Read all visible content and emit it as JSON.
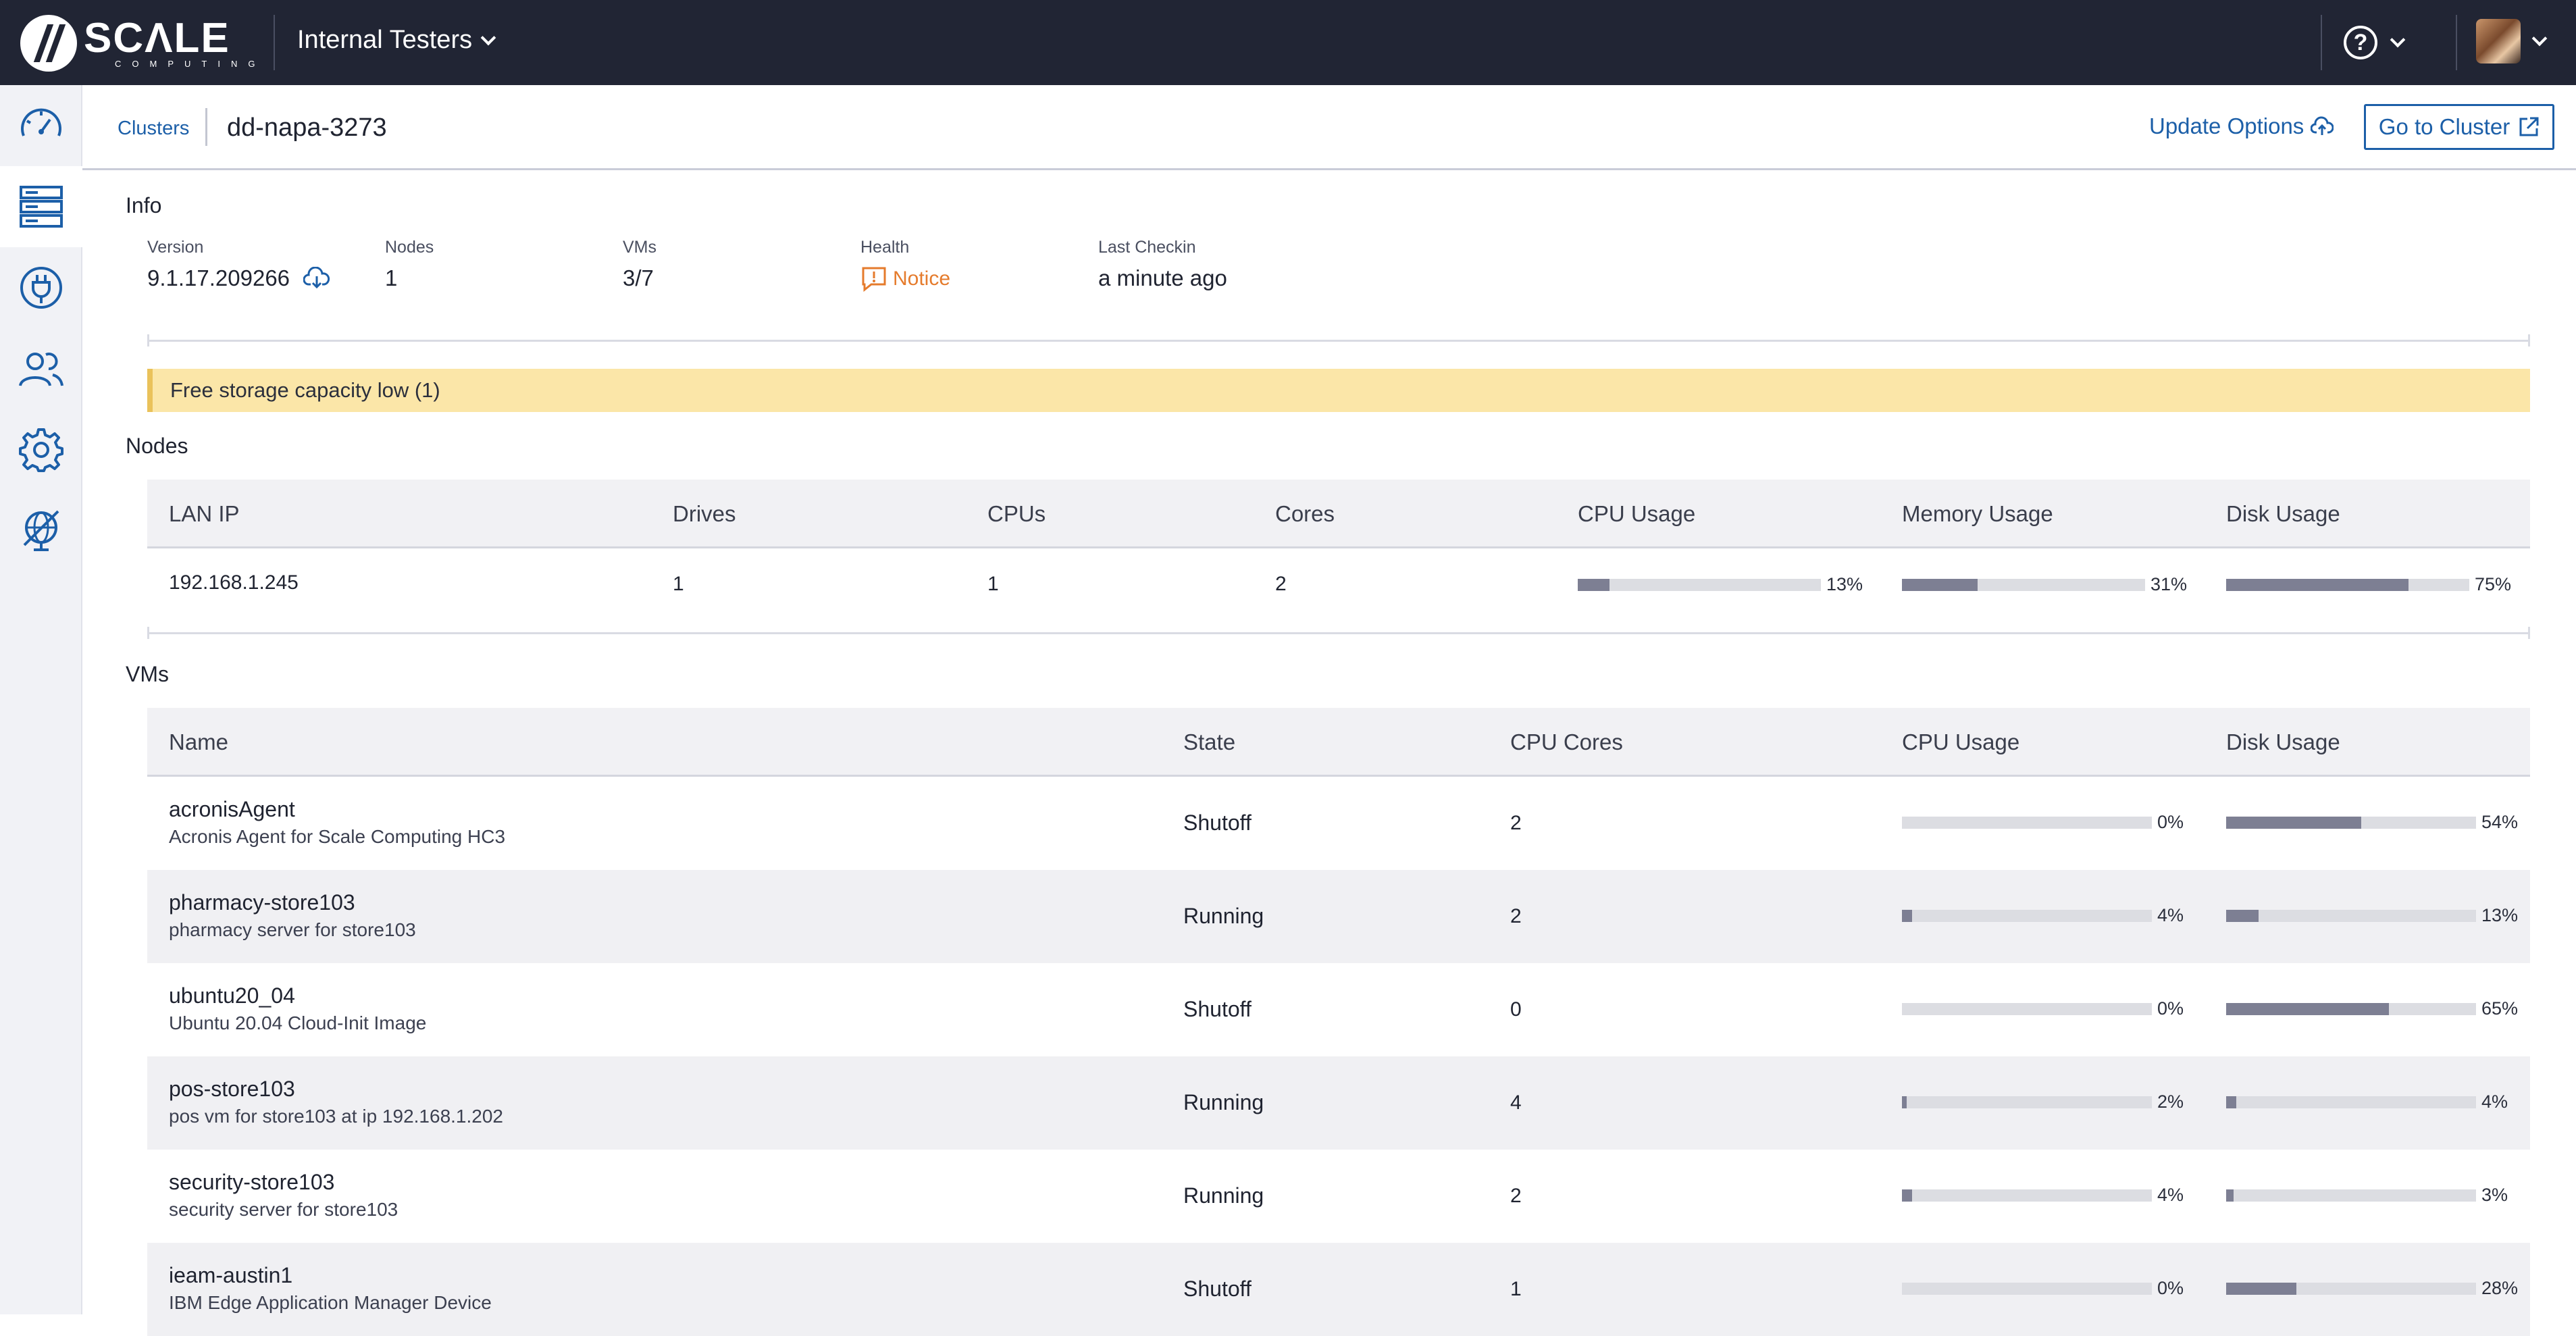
{
  "brand": {
    "name": "SCΛLE",
    "sub": "COMPUTING"
  },
  "topbar": {
    "org": "Internal Testers",
    "help_glyph": "?"
  },
  "sidebar": {
    "items": [
      {
        "icon": "dashboard-gauge-icon"
      },
      {
        "icon": "clusters-server-icon",
        "active": true
      },
      {
        "icon": "plug-icon"
      },
      {
        "icon": "users-icon"
      },
      {
        "icon": "gear-icon"
      },
      {
        "icon": "globe-crossed-icon"
      }
    ]
  },
  "breadcrumb": {
    "parent": "Clusters",
    "current": "dd-napa-3273"
  },
  "actions": {
    "update": "Update Options",
    "goto": "Go to Cluster"
  },
  "info": {
    "title": "Info",
    "version_label": "Version",
    "version": "9.1.17.209266",
    "nodes_label": "Nodes",
    "nodes": "1",
    "vms_label": "VMs",
    "vms": "3/7",
    "health_label": "Health",
    "health": "Notice",
    "checkin_label": "Last Checkin",
    "checkin": "a minute ago"
  },
  "alert": {
    "text": "Free storage capacity low (1)",
    "color": "#fbe6a8"
  },
  "nodes": {
    "title": "Nodes",
    "headers": [
      "LAN IP",
      "Drives",
      "CPUs",
      "Cores",
      "CPU Usage",
      "Memory Usage",
      "Disk Usage"
    ],
    "rows": [
      {
        "ip": "192.168.1.245",
        "drives": "1",
        "cpus": "1",
        "cores": "2",
        "cpu_pct": 13,
        "cpu_label": "13%",
        "mem_pct": 31,
        "mem_label": "31%",
        "disk_pct": 75,
        "disk_label": "75%"
      }
    ]
  },
  "vms": {
    "title": "VMs",
    "headers": [
      "Name",
      "State",
      "CPU Cores",
      "CPU Usage",
      "Disk Usage"
    ],
    "rows": [
      {
        "name": "acronisAgent",
        "desc": "Acronis Agent for Scale Computing HC3",
        "state": "Shutoff",
        "cores": "2",
        "cpu_pct": 0,
        "cpu_label": "0%",
        "disk_pct": 54,
        "disk_label": "54%"
      },
      {
        "name": "pharmacy-store103",
        "desc": "pharmacy server for store103",
        "state": "Running",
        "cores": "2",
        "cpu_pct": 4,
        "cpu_label": "4%",
        "disk_pct": 13,
        "disk_label": "13%"
      },
      {
        "name": "ubuntu20_04",
        "desc": "Ubuntu 20.04 Cloud-Init Image",
        "state": "Shutoff",
        "cores": "0",
        "cpu_pct": 0,
        "cpu_label": "0%",
        "disk_pct": 65,
        "disk_label": "65%"
      },
      {
        "name": "pos-store103",
        "desc": "pos vm for store103 at ip 192.168.1.202",
        "state": "Running",
        "cores": "4",
        "cpu_pct": 2,
        "cpu_label": "2%",
        "disk_pct": 4,
        "disk_label": "4%"
      },
      {
        "name": "security-store103",
        "desc": "security server for store103",
        "state": "Running",
        "cores": "2",
        "cpu_pct": 4,
        "cpu_label": "4%",
        "disk_pct": 3,
        "disk_label": "3%"
      },
      {
        "name": "ieam-austin1",
        "desc": "IBM Edge Application Manager Device",
        "state": "Shutoff",
        "cores": "1",
        "cpu_pct": 0,
        "cpu_label": "0%",
        "disk_pct": 28,
        "disk_label": "28%"
      }
    ]
  },
  "colors": {
    "topbar": "#212534",
    "link": "#1c5fa8",
    "notice": "#e57b2c",
    "bar_fill": "#7d7f93",
    "bar_track": "#dcdde2"
  }
}
